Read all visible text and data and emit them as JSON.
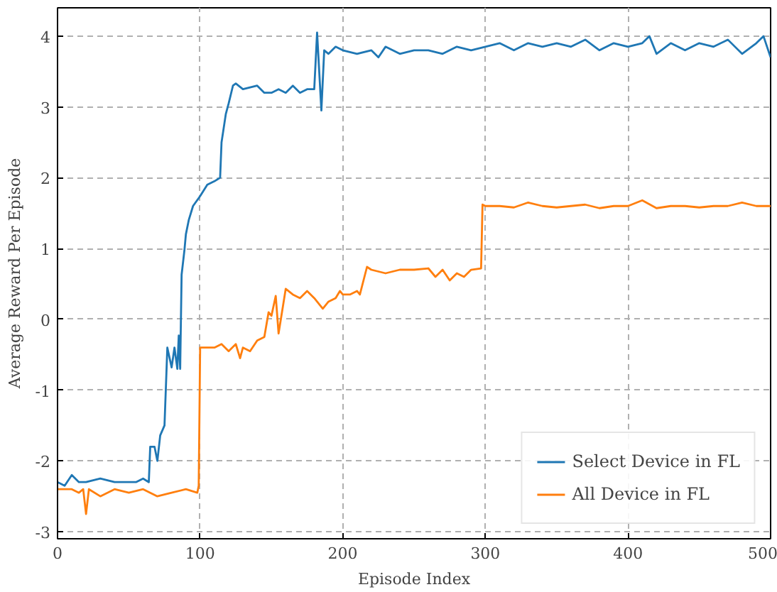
{
  "chart_data": {
    "type": "line",
    "xlabel": "Episode Index",
    "ylabel": "Average Reward Per Episode",
    "xlim": [
      0,
      500
    ],
    "ylim": [
      -3.1,
      4.4
    ],
    "xticks": [
      0,
      100,
      200,
      300,
      400,
      500
    ],
    "yticks": [
      -3,
      -2,
      -1,
      0,
      1,
      2,
      3,
      4
    ],
    "grid": true,
    "legend": "bottom right",
    "line_style": "solid",
    "series": [
      {
        "name": "Select Device in FL",
        "color": "#1f77b4",
        "x": [
          0,
          5,
          10,
          15,
          20,
          30,
          40,
          50,
          55,
          60,
          64,
          65,
          68,
          70,
          72,
          75,
          77,
          80,
          82,
          84,
          85,
          86,
          87,
          89,
          90,
          92,
          95,
          100,
          105,
          110,
          114,
          115,
          118,
          120,
          123,
          125,
          130,
          140,
          145,
          150,
          155,
          160,
          165,
          170,
          175,
          180,
          182,
          185,
          187,
          190,
          195,
          200,
          210,
          220,
          225,
          230,
          240,
          250,
          260,
          270,
          280,
          290,
          300,
          310,
          320,
          330,
          340,
          350,
          360,
          370,
          380,
          390,
          400,
          410,
          415,
          420,
          430,
          440,
          450,
          460,
          470,
          480,
          490,
          495,
          500
        ],
        "values": [
          -2.3,
          -2.35,
          -2.2,
          -2.3,
          -2.3,
          -2.25,
          -2.3,
          -2.3,
          -2.3,
          -2.25,
          -2.3,
          -1.8,
          -1.8,
          -2.0,
          -1.64,
          -1.5,
          -0.4,
          -0.68,
          -0.4,
          -0.7,
          -0.23,
          -0.7,
          0.63,
          0.98,
          1.2,
          1.4,
          1.6,
          1.74,
          1.9,
          1.95,
          2.0,
          2.5,
          2.9,
          3.05,
          3.3,
          3.33,
          3.25,
          3.3,
          3.2,
          3.2,
          3.25,
          3.2,
          3.3,
          3.2,
          3.25,
          3.25,
          4.05,
          2.95,
          3.8,
          3.75,
          3.85,
          3.8,
          3.75,
          3.8,
          3.7,
          3.85,
          3.75,
          3.8,
          3.8,
          3.75,
          3.85,
          3.8,
          3.85,
          3.9,
          3.8,
          3.9,
          3.85,
          3.9,
          3.85,
          3.95,
          3.8,
          3.9,
          3.85,
          3.9,
          4.0,
          3.75,
          3.9,
          3.8,
          3.9,
          3.85,
          3.95,
          3.75,
          3.9,
          4.0,
          3.7
        ]
      },
      {
        "name": "All Device in FL",
        "color": "#ff7f0e",
        "x": [
          0,
          10,
          15,
          18,
          20,
          22,
          30,
          40,
          50,
          60,
          70,
          80,
          90,
          98,
          99,
          100,
          105,
          110,
          115,
          120,
          125,
          128,
          130,
          135,
          140,
          145,
          148,
          150,
          153,
          155,
          160,
          165,
          170,
          175,
          180,
          186,
          190,
          195,
          198,
          200,
          205,
          210,
          212,
          217,
          220,
          230,
          240,
          250,
          260,
          265,
          270,
          275,
          280,
          285,
          290,
          297,
          298,
          300,
          310,
          320,
          330,
          340,
          350,
          360,
          370,
          380,
          390,
          400,
          410,
          420,
          430,
          440,
          450,
          460,
          470,
          480,
          490,
          500
        ],
        "values": [
          -2.4,
          -2.4,
          -2.45,
          -2.4,
          -2.75,
          -2.4,
          -2.5,
          -2.4,
          -2.45,
          -2.4,
          -2.5,
          -2.45,
          -2.4,
          -2.45,
          -2.35,
          -0.4,
          -0.4,
          -0.4,
          -0.35,
          -0.45,
          -0.35,
          -0.55,
          -0.4,
          -0.45,
          -0.3,
          -0.25,
          0.1,
          0.05,
          0.33,
          -0.2,
          0.43,
          0.35,
          0.3,
          0.4,
          0.3,
          0.15,
          0.25,
          0.3,
          0.4,
          0.35,
          0.35,
          0.4,
          0.35,
          0.74,
          0.7,
          0.65,
          0.7,
          0.7,
          0.72,
          0.6,
          0.7,
          0.55,
          0.65,
          0.6,
          0.7,
          0.72,
          1.62,
          1.6,
          1.6,
          1.58,
          1.65,
          1.6,
          1.58,
          1.6,
          1.62,
          1.57,
          1.6,
          1.6,
          1.68,
          1.57,
          1.6,
          1.6,
          1.58,
          1.6,
          1.6,
          1.65,
          1.6,
          1.6
        ]
      }
    ]
  }
}
